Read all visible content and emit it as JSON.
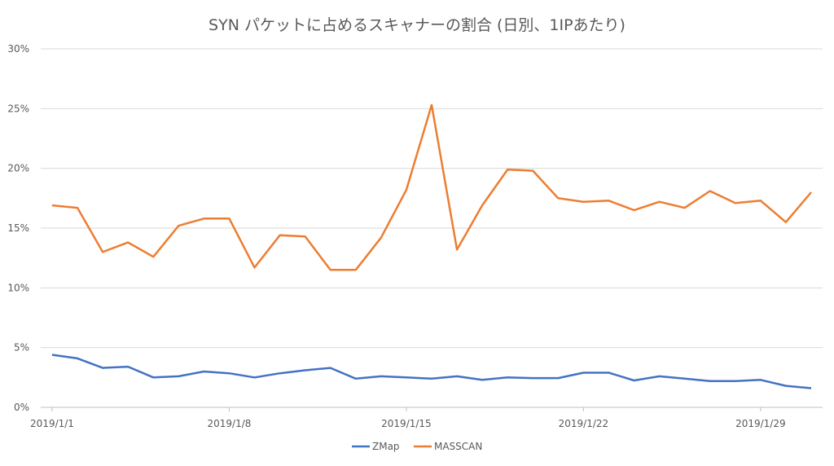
{
  "chart_data": {
    "type": "line",
    "title": "SYN パケットに占めるスキャナーの割合 (日別、1IPあたり)",
    "xlabel": "",
    "ylabel": "",
    "x": [
      "2019/1/1",
      "2019/1/2",
      "2019/1/3",
      "2019/1/4",
      "2019/1/5",
      "2019/1/6",
      "2019/1/7",
      "2019/1/8",
      "2019/1/9",
      "2019/1/10",
      "2019/1/11",
      "2019/1/12",
      "2019/1/13",
      "2019/1/14",
      "2019/1/15",
      "2019/1/16",
      "2019/1/17",
      "2019/1/18",
      "2019/1/19",
      "2019/1/20",
      "2019/1/21",
      "2019/1/22",
      "2019/1/23",
      "2019/1/24",
      "2019/1/25",
      "2019/1/26",
      "2019/1/27",
      "2019/1/28",
      "2019/1/29",
      "2019/1/30",
      "2019/1/31"
    ],
    "x_tick_labels": [
      "2019/1/1",
      "2019/1/8",
      "2019/1/15",
      "2019/1/22",
      "2019/1/29"
    ],
    "y_tick_labels": [
      "0%",
      "5%",
      "10%",
      "15%",
      "20%",
      "25%",
      "30%"
    ],
    "ylim": [
      0,
      30
    ],
    "y_unit": "%",
    "grid": true,
    "legend_position": "bottom",
    "series": [
      {
        "name": "ZMap",
        "color": "#4472C4",
        "values": [
          4.4,
          4.1,
          3.3,
          3.4,
          2.5,
          2.6,
          3.0,
          2.85,
          2.5,
          2.85,
          3.1,
          3.3,
          2.4,
          2.6,
          2.5,
          2.4,
          2.6,
          2.3,
          2.5,
          2.45,
          2.45,
          2.9,
          2.9,
          2.25,
          2.6,
          2.4,
          2.2,
          2.2,
          2.3,
          1.8,
          1.6
        ]
      },
      {
        "name": "MASSCAN",
        "color": "#ED7D31",
        "values": [
          16.9,
          16.7,
          13.0,
          13.8,
          12.6,
          15.2,
          15.8,
          15.8,
          11.7,
          14.4,
          14.3,
          11.5,
          11.5,
          14.2,
          18.2,
          25.3,
          13.2,
          16.9,
          19.9,
          19.8,
          17.5,
          17.2,
          17.3,
          16.5,
          17.2,
          16.7,
          18.1,
          17.1,
          17.3,
          15.5,
          18.0
        ]
      }
    ]
  }
}
